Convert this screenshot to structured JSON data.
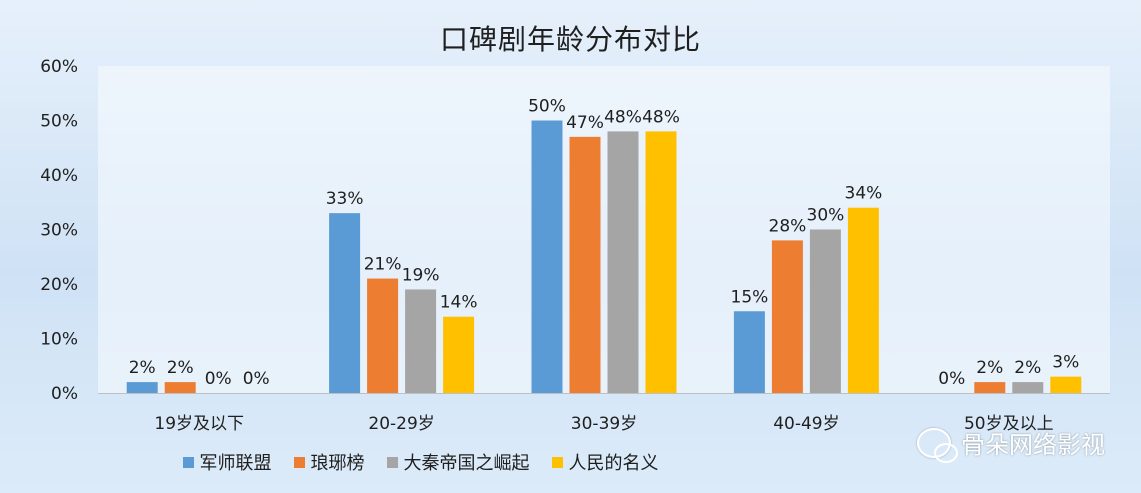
{
  "chart_data": {
    "type": "bar",
    "title": "口碑剧年龄分布对比",
    "categories": [
      "19岁及以下",
      "20-29岁",
      "30-39岁",
      "40-49岁",
      "50岁及以上"
    ],
    "series": [
      {
        "name": "军师联盟",
        "color": "#5b9bd5",
        "values": [
          2,
          33,
          50,
          15,
          0
        ],
        "labels": [
          "2%",
          "33%",
          "50%",
          "15%",
          "0%"
        ]
      },
      {
        "name": "琅琊榜",
        "color": "#ed7d31",
        "values": [
          2,
          21,
          47,
          28,
          2
        ],
        "labels": [
          "2%",
          "21%",
          "47%",
          "28%",
          "2%"
        ]
      },
      {
        "name": "大秦帝国之崛起",
        "color": "#a5a5a5",
        "values": [
          0,
          19,
          48,
          30,
          2
        ],
        "labels": [
          "0%",
          "19%",
          "48%",
          "30%",
          "2%"
        ]
      },
      {
        "name": "人民的名义",
        "color": "#ffc000",
        "values": [
          0,
          14,
          48,
          34,
          3
        ],
        "labels": [
          "0%",
          "14%",
          "48%",
          "34%",
          "3%"
        ]
      }
    ],
    "ylim": [
      0,
      60
    ],
    "yticks": [
      "0%",
      "10%",
      "20%",
      "30%",
      "40%",
      "50%",
      "60%"
    ],
    "grid": false,
    "legend_position": "bottom"
  },
  "watermark": {
    "text": "骨朵网络影视",
    "icon": "wechat-icon"
  }
}
